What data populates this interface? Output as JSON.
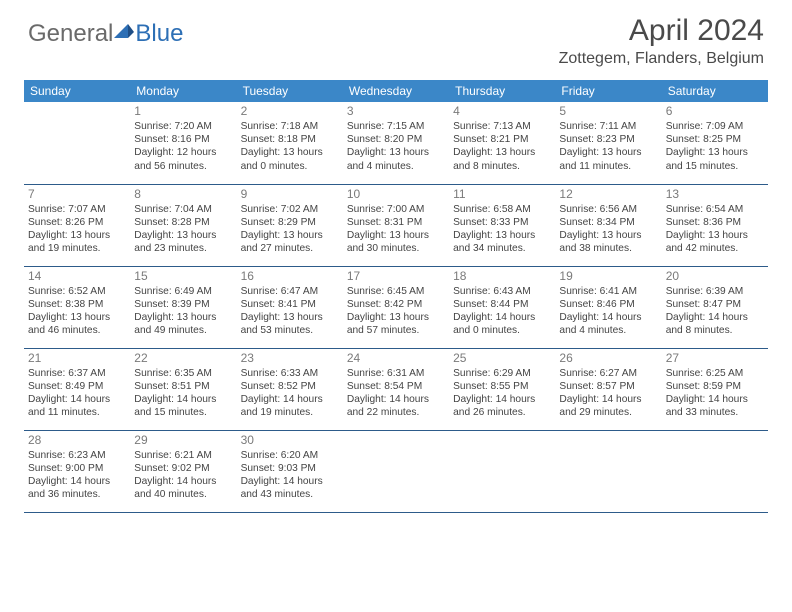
{
  "logo": {
    "text_general": "General",
    "text_blue": "Blue"
  },
  "header": {
    "month_title": "April 2024",
    "location": "Zottegem, Flanders, Belgium"
  },
  "colors": {
    "header_bg": "#3b87c8",
    "header_text": "#ffffff",
    "cell_border": "#2d5b8a",
    "daynum": "#7a7a7a",
    "body_text": "#444444",
    "title_text": "#4a4a4a",
    "logo_gray": "#6a6a6a",
    "logo_blue": "#2d6fb5"
  },
  "weekdays": [
    "Sunday",
    "Monday",
    "Tuesday",
    "Wednesday",
    "Thursday",
    "Friday",
    "Saturday"
  ],
  "weeks": [
    [
      null,
      {
        "n": "1",
        "sr": "7:20 AM",
        "ss": "8:16 PM",
        "dl": "12 hours and 56 minutes."
      },
      {
        "n": "2",
        "sr": "7:18 AM",
        "ss": "8:18 PM",
        "dl": "13 hours and 0 minutes."
      },
      {
        "n": "3",
        "sr": "7:15 AM",
        "ss": "8:20 PM",
        "dl": "13 hours and 4 minutes."
      },
      {
        "n": "4",
        "sr": "7:13 AM",
        "ss": "8:21 PM",
        "dl": "13 hours and 8 minutes."
      },
      {
        "n": "5",
        "sr": "7:11 AM",
        "ss": "8:23 PM",
        "dl": "13 hours and 11 minutes."
      },
      {
        "n": "6",
        "sr": "7:09 AM",
        "ss": "8:25 PM",
        "dl": "13 hours and 15 minutes."
      }
    ],
    [
      {
        "n": "7",
        "sr": "7:07 AM",
        "ss": "8:26 PM",
        "dl": "13 hours and 19 minutes."
      },
      {
        "n": "8",
        "sr": "7:04 AM",
        "ss": "8:28 PM",
        "dl": "13 hours and 23 minutes."
      },
      {
        "n": "9",
        "sr": "7:02 AM",
        "ss": "8:29 PM",
        "dl": "13 hours and 27 minutes."
      },
      {
        "n": "10",
        "sr": "7:00 AM",
        "ss": "8:31 PM",
        "dl": "13 hours and 30 minutes."
      },
      {
        "n": "11",
        "sr": "6:58 AM",
        "ss": "8:33 PM",
        "dl": "13 hours and 34 minutes."
      },
      {
        "n": "12",
        "sr": "6:56 AM",
        "ss": "8:34 PM",
        "dl": "13 hours and 38 minutes."
      },
      {
        "n": "13",
        "sr": "6:54 AM",
        "ss": "8:36 PM",
        "dl": "13 hours and 42 minutes."
      }
    ],
    [
      {
        "n": "14",
        "sr": "6:52 AM",
        "ss": "8:38 PM",
        "dl": "13 hours and 46 minutes."
      },
      {
        "n": "15",
        "sr": "6:49 AM",
        "ss": "8:39 PM",
        "dl": "13 hours and 49 minutes."
      },
      {
        "n": "16",
        "sr": "6:47 AM",
        "ss": "8:41 PM",
        "dl": "13 hours and 53 minutes."
      },
      {
        "n": "17",
        "sr": "6:45 AM",
        "ss": "8:42 PM",
        "dl": "13 hours and 57 minutes."
      },
      {
        "n": "18",
        "sr": "6:43 AM",
        "ss": "8:44 PM",
        "dl": "14 hours and 0 minutes."
      },
      {
        "n": "19",
        "sr": "6:41 AM",
        "ss": "8:46 PM",
        "dl": "14 hours and 4 minutes."
      },
      {
        "n": "20",
        "sr": "6:39 AM",
        "ss": "8:47 PM",
        "dl": "14 hours and 8 minutes."
      }
    ],
    [
      {
        "n": "21",
        "sr": "6:37 AM",
        "ss": "8:49 PM",
        "dl": "14 hours and 11 minutes."
      },
      {
        "n": "22",
        "sr": "6:35 AM",
        "ss": "8:51 PM",
        "dl": "14 hours and 15 minutes."
      },
      {
        "n": "23",
        "sr": "6:33 AM",
        "ss": "8:52 PM",
        "dl": "14 hours and 19 minutes."
      },
      {
        "n": "24",
        "sr": "6:31 AM",
        "ss": "8:54 PM",
        "dl": "14 hours and 22 minutes."
      },
      {
        "n": "25",
        "sr": "6:29 AM",
        "ss": "8:55 PM",
        "dl": "14 hours and 26 minutes."
      },
      {
        "n": "26",
        "sr": "6:27 AM",
        "ss": "8:57 PM",
        "dl": "14 hours and 29 minutes."
      },
      {
        "n": "27",
        "sr": "6:25 AM",
        "ss": "8:59 PM",
        "dl": "14 hours and 33 minutes."
      }
    ],
    [
      {
        "n": "28",
        "sr": "6:23 AM",
        "ss": "9:00 PM",
        "dl": "14 hours and 36 minutes."
      },
      {
        "n": "29",
        "sr": "6:21 AM",
        "ss": "9:02 PM",
        "dl": "14 hours and 40 minutes."
      },
      {
        "n": "30",
        "sr": "6:20 AM",
        "ss": "9:03 PM",
        "dl": "14 hours and 43 minutes."
      },
      null,
      null,
      null,
      null
    ]
  ],
  "labels": {
    "sunrise": "Sunrise: ",
    "sunset": "Sunset: ",
    "daylight": "Daylight: "
  }
}
